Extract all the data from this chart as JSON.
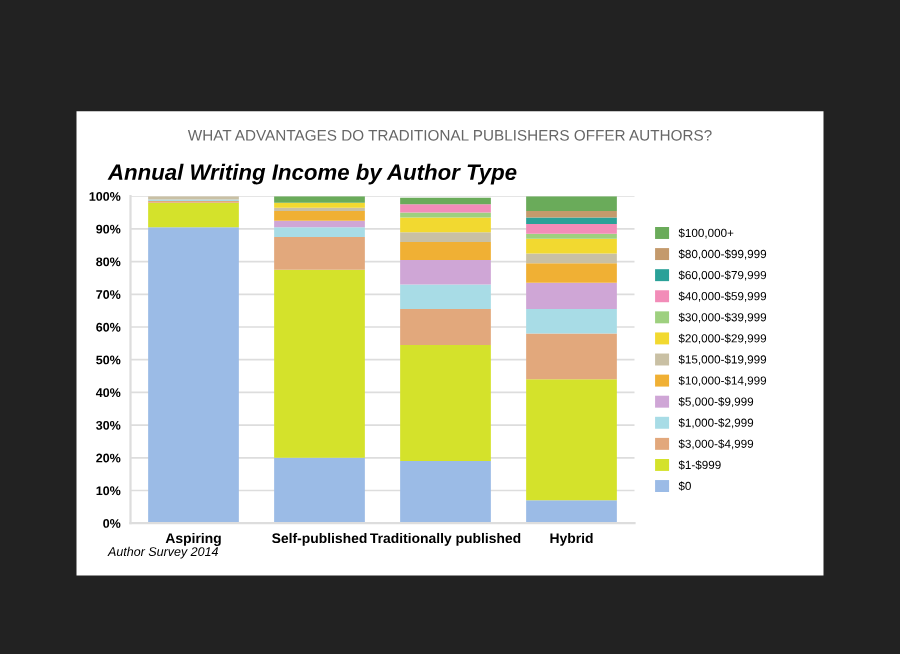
{
  "chart_data": {
    "type": "bar",
    "stacked": true,
    "title": "WHAT ADVANTAGES DO TRADITIONAL PUBLISHERS OFFER AUTHORS?",
    "subtitle": "Annual Writing Income by Author Type",
    "annotations": [
      "Author Survey 2014"
    ],
    "categories": [
      "Aspiring",
      "Self-published",
      "Traditionally published",
      "Hybrid"
    ],
    "ylim": [
      0,
      100
    ],
    "yticks": [
      {
        "value": 0,
        "label": "0%"
      },
      {
        "value": 10,
        "label": "10%"
      },
      {
        "value": 20,
        "label": "20%"
      },
      {
        "value": 30,
        "label": "30%"
      },
      {
        "value": 40,
        "label": "40%"
      },
      {
        "value": 50,
        "label": "50%"
      },
      {
        "value": 60,
        "label": "60%"
      },
      {
        "value": 70,
        "label": "70%"
      },
      {
        "value": 80,
        "label": "80%"
      },
      {
        "value": 90,
        "label": "90%"
      },
      {
        "value": 100,
        "label": "100%"
      }
    ],
    "grid": "y",
    "legend": "right",
    "series": [
      {
        "name": "$0",
        "color": "#9bbbe6",
        "values": [
          90.5,
          20,
          19,
          7
        ]
      },
      {
        "name": "$1-$999",
        "color": "#d4e22b",
        "values": [
          7.5,
          57.5,
          35.5,
          37
        ]
      },
      {
        "name": "$3,000-$4,999",
        "color": "#e2a87c",
        "values": [
          0.5,
          10,
          11,
          14
        ]
      },
      {
        "name": "$1,000-$2,999",
        "color": "#a8dce6",
        "values": [
          0.5,
          3,
          7.5,
          7.5
        ]
      },
      {
        "name": "$5,000-$9,999",
        "color": "#cfa6d6",
        "values": [
          0,
          2,
          7.5,
          8
        ]
      },
      {
        "name": "$10,000-$14,999",
        "color": "#f0b034",
        "values": [
          0,
          3,
          5.5,
          6
        ]
      },
      {
        "name": "$15,000-$19,999",
        "color": "#c9c0a4",
        "values": [
          1,
          1,
          3,
          3
        ]
      },
      {
        "name": "$20,000-$29,999",
        "color": "#f2d930",
        "values": [
          0,
          1.5,
          4.5,
          4.5
        ]
      },
      {
        "name": "$30,000-$39,999",
        "color": "#9ed07f",
        "values": [
          0,
          0,
          1.5,
          1.5
        ]
      },
      {
        "name": "$40,000-$59,999",
        "color": "#f28cb8",
        "values": [
          0,
          0,
          2.5,
          3
        ]
      },
      {
        "name": "$60,000-$79,999",
        "color": "#2aa198",
        "values": [
          0,
          0,
          0,
          2
        ]
      },
      {
        "name": "$80,000-$99,999",
        "color": "#c49a6c",
        "values": [
          0,
          0,
          0,
          2
        ]
      },
      {
        "name": "$100,000+",
        "color": "#6aab5a",
        "values": [
          0,
          2,
          2,
          4.5
        ]
      }
    ]
  }
}
